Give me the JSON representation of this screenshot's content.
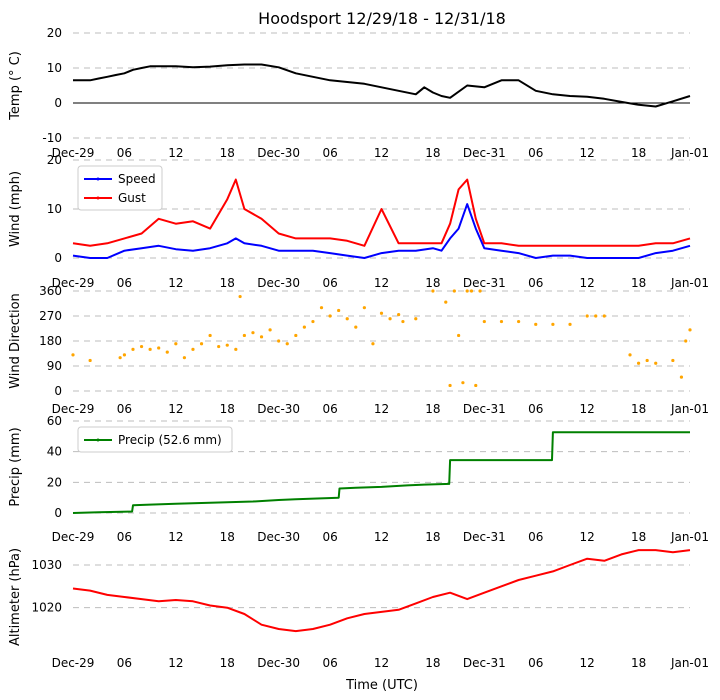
{
  "title": "Hoodsport 12/29/18 - 12/31/18",
  "xlabel": "Time (UTC)",
  "x_ticks": [
    "Dec-29",
    "06",
    "12",
    "18",
    "Dec-30",
    "06",
    "12",
    "18",
    "Dec-31",
    "06",
    "12",
    "18",
    "Jan-01"
  ],
  "chart_data": [
    {
      "type": "line",
      "ylabel": "Temp ($^\\circ$C)",
      "ylim": [
        -10,
        20
      ],
      "yticks": [
        -10,
        0,
        10,
        20
      ],
      "grid": true,
      "zero_line": true,
      "series": [
        {
          "color": "#000000",
          "x": [
            0,
            2,
            3,
            4,
            5,
            6,
            7,
            8,
            9,
            10,
            12,
            14,
            16,
            18,
            20,
            22,
            24,
            26,
            28,
            30,
            32,
            34,
            36,
            38,
            40,
            41,
            42,
            43,
            44,
            46,
            48,
            50,
            52,
            54,
            56,
            58,
            60,
            62,
            64,
            66,
            68,
            70,
            72
          ],
          "y": [
            6.5,
            6.5,
            7,
            7.5,
            8,
            8.5,
            9.5,
            10,
            10.5,
            10.5,
            10.5,
            10.2,
            10.4,
            10.8,
            11,
            11,
            10.2,
            8.5,
            7.5,
            6.5,
            6,
            5.5,
            4.5,
            3.5,
            2.5,
            4.5,
            3,
            2,
            1.5,
            5,
            4.5,
            6.5,
            6.5,
            3.5,
            2.5,
            2,
            1.8,
            1.2,
            0.3,
            -0.5,
            -1,
            0.5,
            2
          ]
        }
      ]
    },
    {
      "type": "line",
      "ylabel": "Wind (mph)",
      "ylim": [
        0,
        20
      ],
      "yticks": [
        0,
        10,
        20
      ],
      "grid": true,
      "legend_loc": "upper-left",
      "series": [
        {
          "name": "Speed",
          "color": "#0000ff",
          "x": [
            0,
            2,
            4,
            6,
            8,
            10,
            12,
            14,
            16,
            18,
            19,
            20,
            22,
            24,
            26,
            28,
            30,
            32,
            34,
            36,
            38,
            40,
            42,
            43,
            44,
            45,
            46,
            47,
            48,
            50,
            52,
            54,
            56,
            58,
            60,
            62,
            64,
            66,
            68,
            70,
            72
          ],
          "y": [
            0.5,
            0,
            0,
            1.5,
            2,
            2.5,
            1.8,
            1.5,
            2,
            3,
            4,
            3,
            2.5,
            1.5,
            1.5,
            1.5,
            1,
            0.5,
            0,
            1,
            1.5,
            1.5,
            2,
            1.5,
            4,
            6,
            11,
            6,
            2,
            1.5,
            1,
            0,
            0.5,
            0.5,
            0,
            0,
            0,
            0,
            1,
            1.5,
            2.5
          ]
        },
        {
          "name": "Gust",
          "color": "#ff0000",
          "x": [
            0,
            2,
            4,
            6,
            8,
            10,
            12,
            14,
            16,
            18,
            19,
            20,
            22,
            24,
            26,
            28,
            30,
            32,
            34,
            36,
            38,
            40,
            42,
            43,
            44,
            45,
            46,
            47,
            48,
            50,
            52,
            54,
            56,
            58,
            60,
            62,
            64,
            66,
            68,
            70,
            72
          ],
          "y": [
            3,
            2.5,
            3,
            4,
            5,
            8,
            7,
            7.5,
            6,
            12,
            16,
            10,
            8,
            5,
            4,
            4,
            4,
            3.5,
            2.5,
            10,
            3,
            3,
            3,
            3,
            7,
            14,
            16,
            8,
            3,
            3,
            2.5,
            2.5,
            2.5,
            2.5,
            2.5,
            2.5,
            2.5,
            2.5,
            3,
            3,
            4
          ]
        }
      ]
    },
    {
      "type": "scatter",
      "ylabel": "Wind Direction",
      "ylim": [
        0,
        360
      ],
      "yticks": [
        0,
        90,
        180,
        270,
        360
      ],
      "grid": true,
      "series": [
        {
          "color": "#ffa500",
          "x": [
            0,
            2,
            5.5,
            6,
            7,
            8,
            9,
            10,
            11,
            12,
            13,
            14,
            15,
            16,
            17,
            18,
            19,
            19.5,
            20,
            21,
            22,
            23,
            24,
            25,
            26,
            27,
            28,
            29,
            30,
            31,
            32,
            33,
            34,
            35,
            36,
            37,
            38,
            38.5,
            40,
            42,
            43.5,
            44,
            44.5,
            45,
            45.5,
            46,
            46.5,
            47,
            47.5,
            48,
            50,
            52,
            54,
            56,
            58,
            60,
            61,
            62,
            65,
            66,
            67,
            68,
            70,
            71,
            71.5,
            72
          ],
          "y": [
            130,
            110,
            120,
            130,
            150,
            160,
            150,
            155,
            140,
            170,
            120,
            150,
            170,
            200,
            160,
            165,
            150,
            340,
            200,
            210,
            195,
            220,
            180,
            170,
            200,
            230,
            250,
            300,
            270,
            290,
            260,
            230,
            300,
            170,
            280,
            260,
            275,
            250,
            260,
            360,
            320,
            20,
            360,
            200,
            30,
            360,
            360,
            20,
            360,
            250,
            250,
            250,
            240,
            240,
            240,
            270,
            270,
            270,
            130,
            100,
            110,
            100,
            110,
            50,
            180,
            220
          ]
        }
      ]
    },
    {
      "type": "line",
      "ylabel": "Precip (mm)",
      "ylim": [
        0,
        60
      ],
      "yticks": [
        0,
        20,
        40,
        60
      ],
      "grid": true,
      "legend_loc": "upper-left",
      "series": [
        {
          "name": "Precip (52.6 mm)",
          "color": "#008000",
          "x": [
            0,
            3,
            6.9,
            7,
            9,
            12,
            15,
            18,
            21,
            24,
            26,
            31,
            31.1,
            33,
            36,
            39,
            41,
            43.9,
            44,
            47,
            50,
            55.9,
            56,
            60,
            64,
            68,
            72
          ],
          "y": [
            0,
            0.5,
            1,
            5,
            5.5,
            6,
            6.5,
            7,
            7.5,
            8.5,
            9,
            10,
            16,
            16.5,
            17,
            18,
            18.5,
            19,
            34.5,
            34.5,
            34.5,
            34.5,
            52.6,
            52.6,
            52.6,
            52.6,
            52.6
          ]
        }
      ]
    },
    {
      "type": "line",
      "ylabel": "Altimeter (hPa)",
      "ylim": [
        1011,
        1034
      ],
      "yticks": [
        1020,
        1030
      ],
      "grid": true,
      "series": [
        {
          "color": "#ff0000",
          "x": [
            0,
            2,
            4,
            6,
            8,
            10,
            12,
            14,
            16,
            18,
            20,
            22,
            24,
            26,
            28,
            30,
            32,
            34,
            36,
            38,
            40,
            42,
            44,
            46,
            48,
            50,
            52,
            54,
            56,
            58,
            60,
            62,
            64,
            66,
            68,
            70,
            72
          ],
          "y": [
            1024.5,
            1024,
            1023,
            1022.5,
            1022,
            1021.5,
            1021.8,
            1021.5,
            1020.5,
            1020,
            1018.5,
            1016,
            1015,
            1014.5,
            1015,
            1016,
            1017.5,
            1018.5,
            1019,
            1019.5,
            1021,
            1022.5,
            1023.5,
            1022,
            1023.5,
            1025,
            1026.5,
            1027.5,
            1028.5,
            1030,
            1031.5,
            1031,
            1032.5,
            1033.5,
            1033.5,
            1033,
            1033.5
          ]
        }
      ]
    }
  ]
}
